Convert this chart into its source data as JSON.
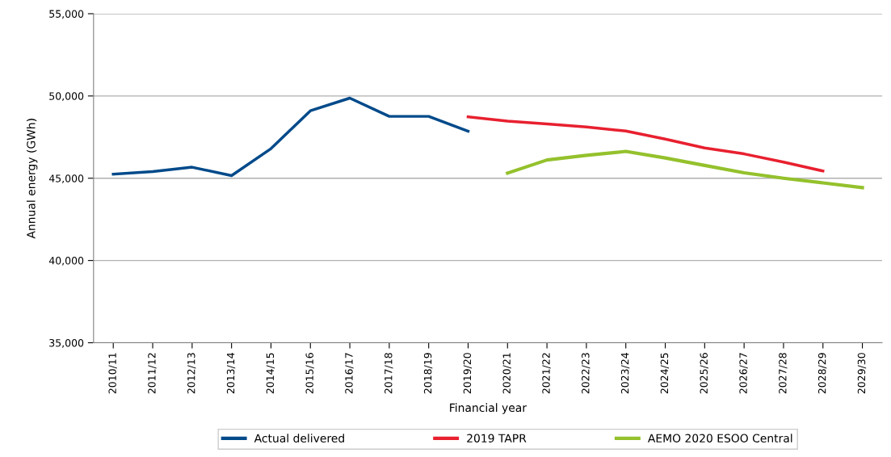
{
  "chart_data": {
    "type": "line",
    "xlabel": "Financial year",
    "ylabel": "Annual energy (GWh)",
    "categories": [
      "2010/11",
      "2011/12",
      "2012/13",
      "2013/14",
      "2014/15",
      "2015/16",
      "2016/17",
      "2017/18",
      "2018/19",
      "2019/20",
      "2020/21",
      "2021/22",
      "2022/23",
      "2023/24",
      "2024/25",
      "2025/26",
      "2026/27",
      "2027/28",
      "2028/29",
      "2029/30"
    ],
    "series": [
      {
        "name": "Actual delivered",
        "color": "#004a8a",
        "values": [
          45250,
          45400,
          45670,
          45160,
          46800,
          49100,
          49870,
          48760,
          48760,
          47860,
          null,
          null,
          null,
          null,
          null,
          null,
          null,
          null,
          null,
          null
        ]
      },
      {
        "name": "2019 TAPR",
        "color": "#e8202f",
        "values": [
          null,
          null,
          null,
          null,
          null,
          null,
          null,
          null,
          null,
          48730,
          48470,
          48300,
          48120,
          47870,
          47380,
          46840,
          46480,
          45980,
          45440,
          null
        ]
      },
      {
        "name": "AEMO 2020 ESOO Central",
        "color": "#94c12c",
        "values": [
          null,
          null,
          null,
          null,
          null,
          null,
          null,
          null,
          null,
          null,
          45310,
          46110,
          46390,
          46630,
          46230,
          45780,
          45330,
          45000,
          44720,
          44430
        ]
      }
    ],
    "ylim": [
      35000,
      55000
    ],
    "yticks": [
      {
        "value": 35000,
        "label": "35,000"
      },
      {
        "value": 40000,
        "label": "40,000"
      },
      {
        "value": 45000,
        "label": "45,000"
      },
      {
        "value": 50000,
        "label": "50,000"
      },
      {
        "value": 55000,
        "label": "55,000"
      }
    ],
    "grid": "y",
    "legend": "bottom",
    "marker": "none",
    "line_style": "solid"
  }
}
